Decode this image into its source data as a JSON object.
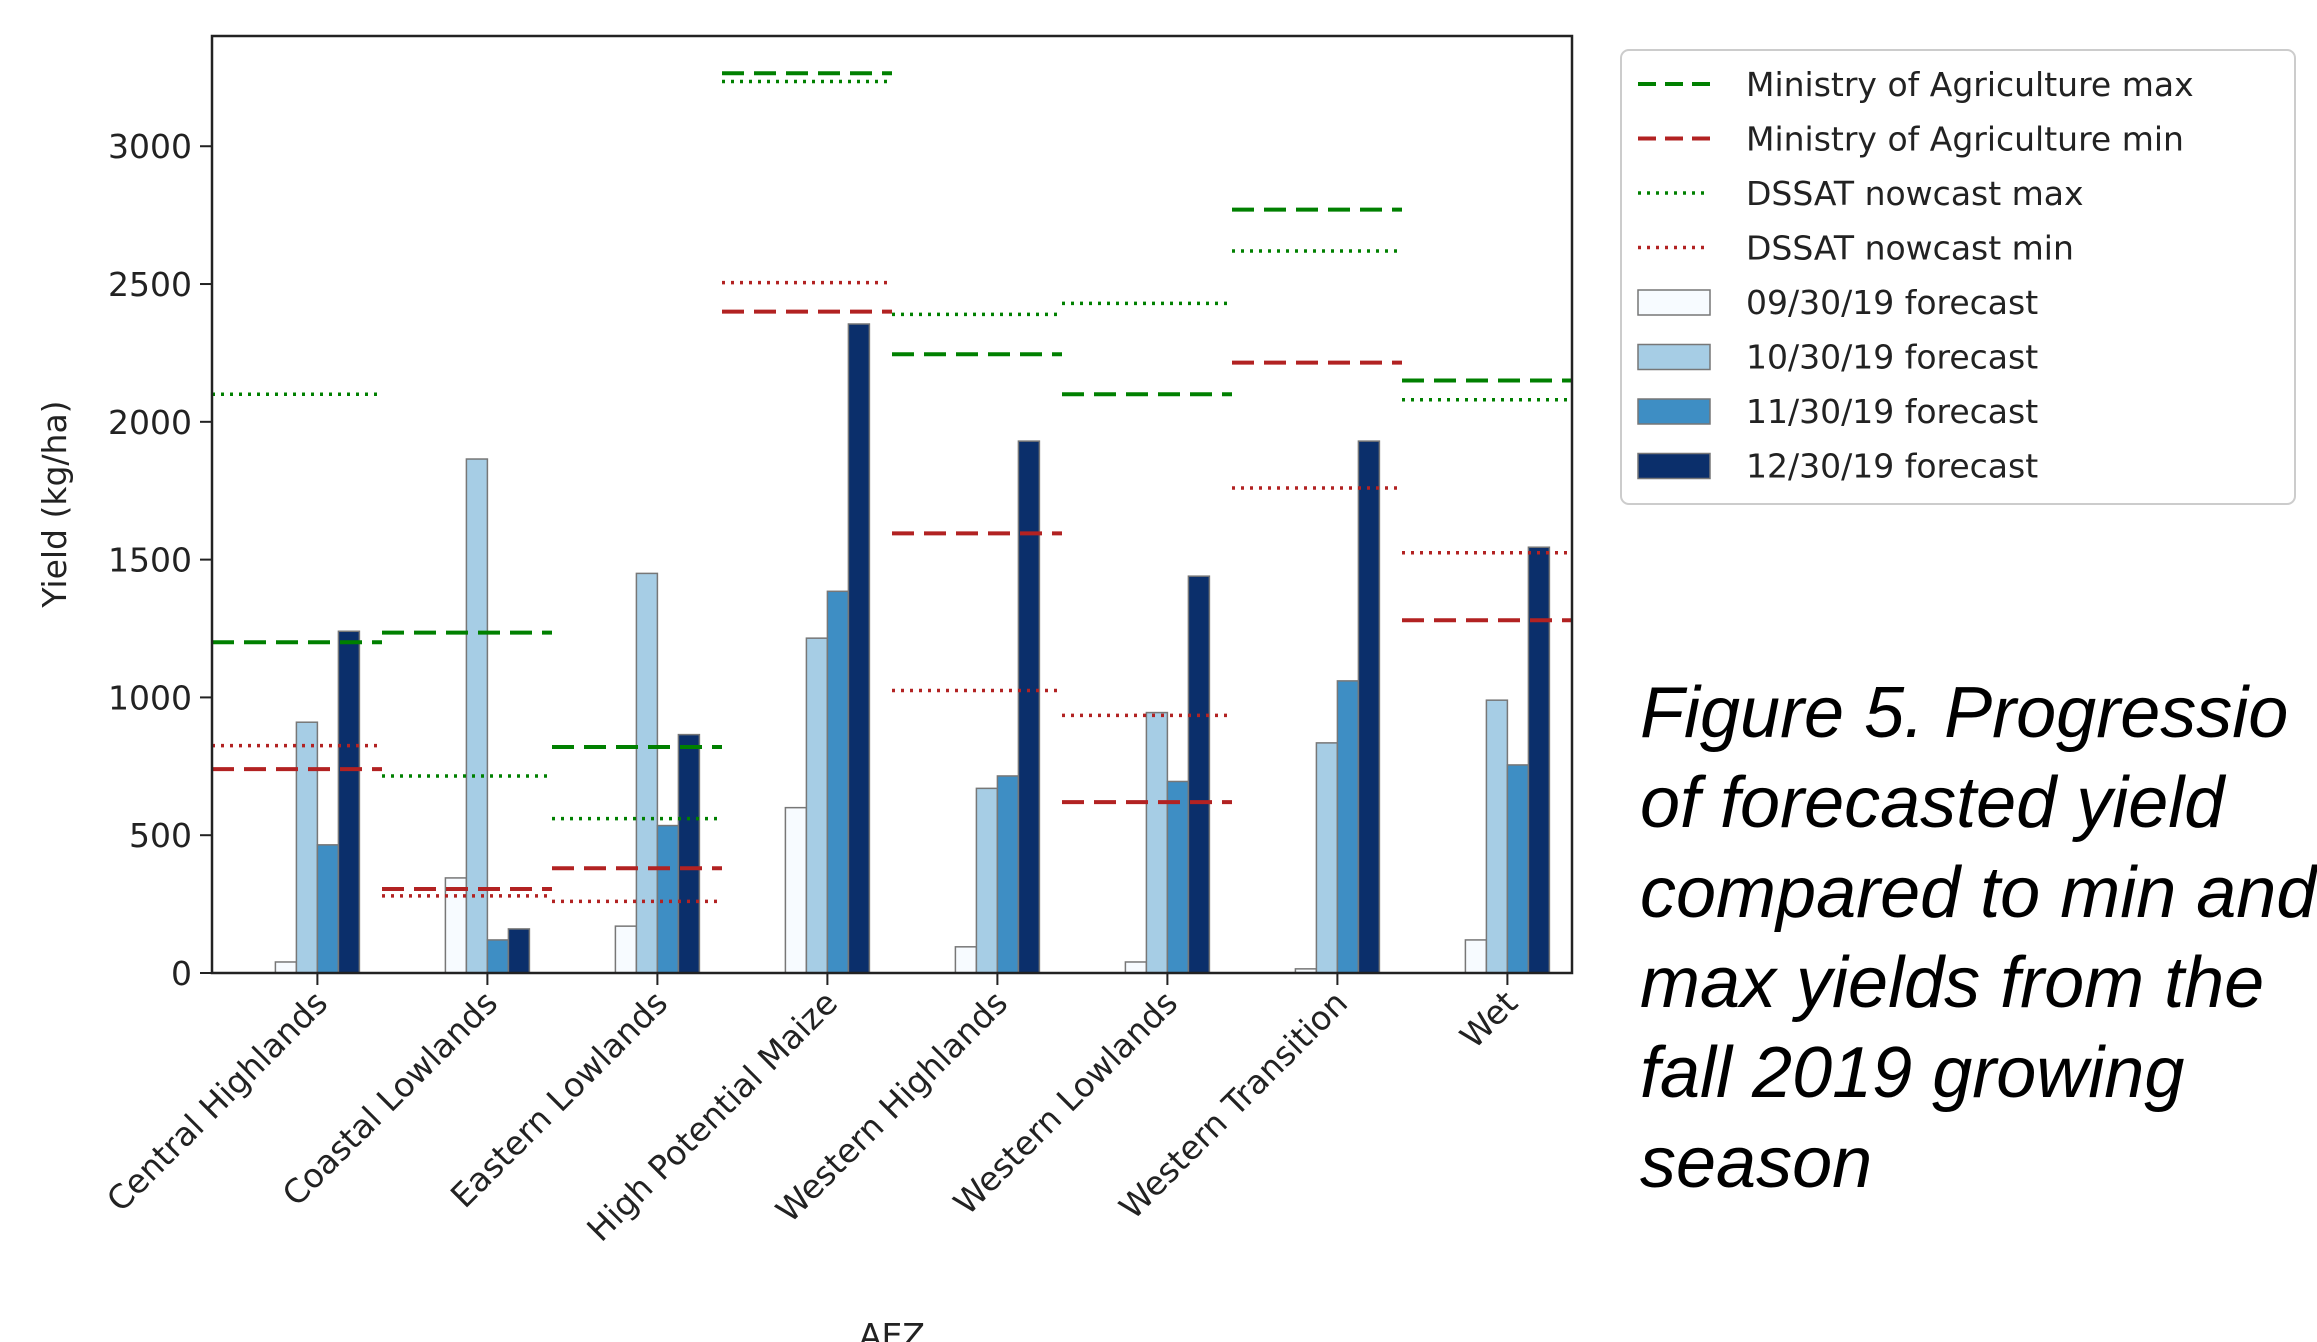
{
  "caption": "Figure 5. Progressio\nof forecasted yield\ncompared to min and\nmax yields from the\nfall 2019 growing\nseason",
  "chart_data": {
    "type": "bar",
    "xlabel": "AEZ",
    "ylabel": "Yield (kg/ha)",
    "ylim": [
      0,
      3400
    ],
    "yticks": [
      0,
      500,
      1000,
      1500,
      2000,
      2500,
      3000
    ],
    "grid": false,
    "legend_position": "outside-right-top",
    "categories": [
      "Central Highlands",
      "Coastal Lowlands",
      "Eastern Lowlands",
      "High Potential Maize",
      "Western Highlands",
      "Western Lowlands",
      "Western Transition",
      "Wet"
    ],
    "series": [
      {
        "name": "09/30/19 forecast",
        "color": "#f7fbff",
        "values": [
          40,
          345,
          170,
          600,
          95,
          40,
          15,
          120
        ]
      },
      {
        "name": "10/30/19 forecast",
        "color": "#a6cde5",
        "values": [
          910,
          1865,
          1450,
          1215,
          670,
          945,
          835,
          990
        ]
      },
      {
        "name": "11/30/19 forecast",
        "color": "#3e8ec4",
        "values": [
          465,
          120,
          535,
          1385,
          715,
          695,
          1060,
          755
        ]
      },
      {
        "name": "12/30/19 forecast",
        "color": "#0b2f6b",
        "values": [
          1240,
          160,
          865,
          2355,
          1930,
          1440,
          1930,
          1545
        ]
      }
    ],
    "reference_lines": [
      {
        "name": "Ministry of Agriculture max",
        "color": "#008000",
        "style": "dashed",
        "values": [
          1200,
          1235,
          820,
          3265,
          2245,
          2100,
          2770,
          2150
        ]
      },
      {
        "name": "Ministry of Agriculture min",
        "color": "#b22222",
        "style": "dashed",
        "values": [
          740,
          305,
          380,
          2400,
          1595,
          620,
          2215,
          1280
        ]
      },
      {
        "name": "DSSAT nowcast max",
        "color": "#008000",
        "style": "dotted",
        "values": [
          2100,
          715,
          560,
          3235,
          2390,
          2430,
          2620,
          2080
        ]
      },
      {
        "name": "DSSAT nowcast min",
        "color": "#b22222",
        "style": "dotted",
        "values": [
          825,
          280,
          260,
          2505,
          1025,
          935,
          1760,
          1525
        ]
      }
    ]
  }
}
